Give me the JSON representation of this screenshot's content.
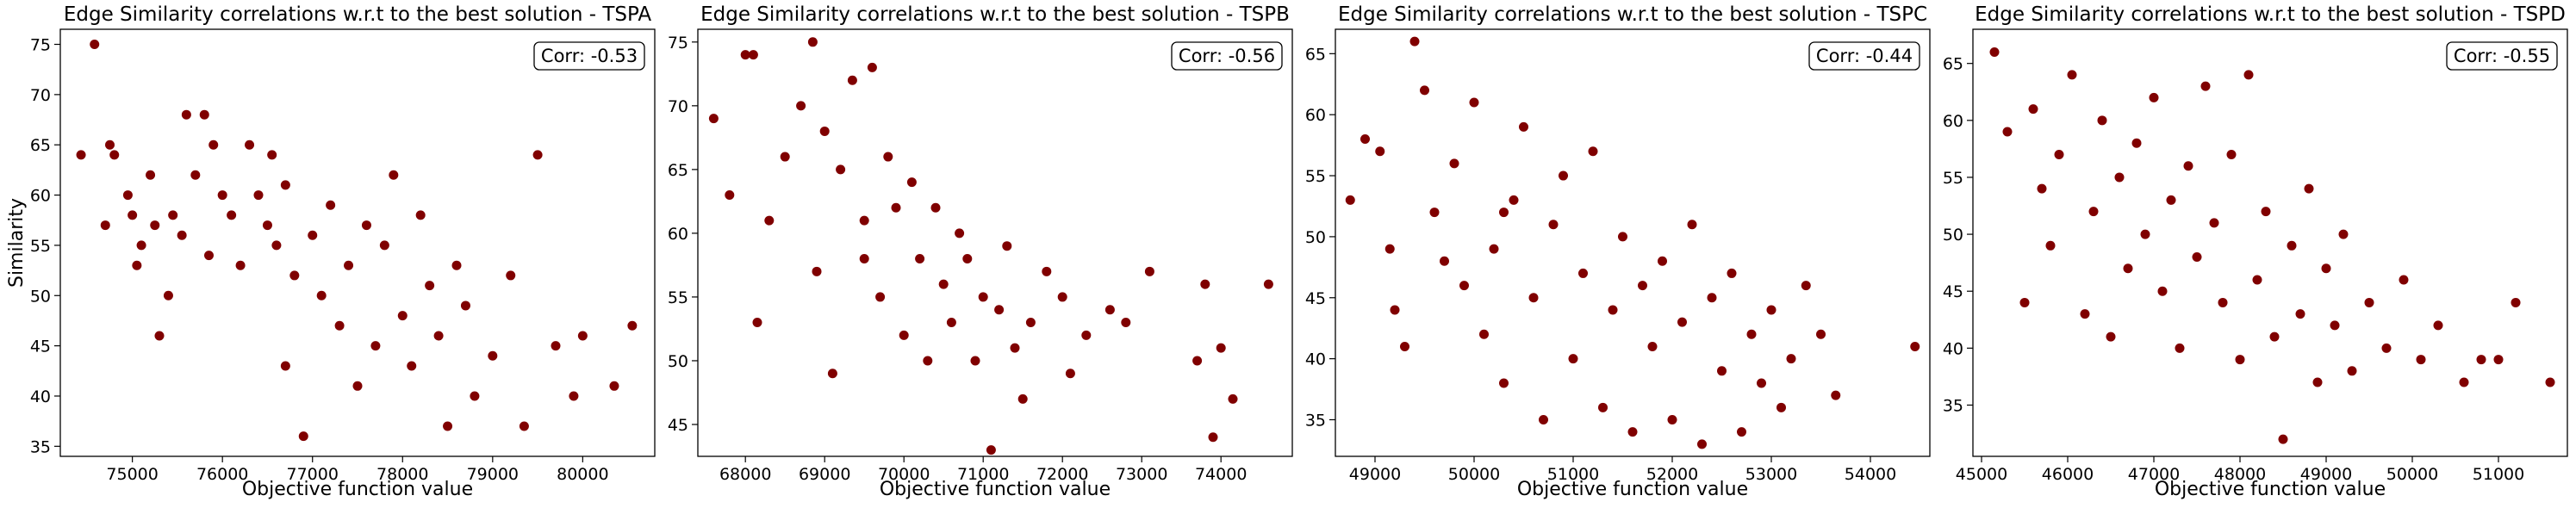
{
  "figure": {
    "marker_color": "#800000"
  },
  "chart_data": [
    {
      "type": "scatter",
      "title": "Edge Similarity correlations w.r.t to the best solution - TSPA",
      "xlabel": "Objective function value",
      "ylabel": "Similarity",
      "corr_label": "Corr: -0.53",
      "xlim": [
        74200,
        80800
      ],
      "ylim": [
        34,
        76.5
      ],
      "xticks": [
        75000,
        76000,
        77000,
        78000,
        79000,
        80000
      ],
      "yticks": [
        35,
        40,
        45,
        50,
        55,
        60,
        65,
        70,
        75
      ],
      "points": [
        [
          74430,
          64
        ],
        [
          74580,
          75
        ],
        [
          74700,
          57
        ],
        [
          74750,
          65
        ],
        [
          74800,
          64
        ],
        [
          74950,
          60
        ],
        [
          75000,
          58
        ],
        [
          75050,
          53
        ],
        [
          75100,
          55
        ],
        [
          75250,
          57
        ],
        [
          75300,
          46
        ],
        [
          75400,
          50
        ],
        [
          75450,
          58
        ],
        [
          75550,
          56
        ],
        [
          75600,
          68
        ],
        [
          75700,
          62
        ],
        [
          75800,
          68
        ],
        [
          75850,
          54
        ],
        [
          75900,
          65
        ],
        [
          76000,
          60
        ],
        [
          76100,
          58
        ],
        [
          76200,
          53
        ],
        [
          76300,
          65
        ],
        [
          76400,
          60
        ],
        [
          76500,
          57
        ],
        [
          76550,
          64
        ],
        [
          76600,
          55
        ],
        [
          76700,
          61
        ],
        [
          76800,
          52
        ],
        [
          76900,
          36
        ],
        [
          77000,
          56
        ],
        [
          77100,
          50
        ],
        [
          77200,
          59
        ],
        [
          77300,
          47
        ],
        [
          77400,
          53
        ],
        [
          77500,
          41
        ],
        [
          77600,
          57
        ],
        [
          77700,
          45
        ],
        [
          77800,
          55
        ],
        [
          77900,
          62
        ],
        [
          78000,
          48
        ],
        [
          78100,
          43
        ],
        [
          78200,
          58
        ],
        [
          78300,
          51
        ],
        [
          78400,
          46
        ],
        [
          78500,
          37
        ],
        [
          78600,
          53
        ],
        [
          78800,
          40
        ],
        [
          79000,
          44
        ],
        [
          79200,
          52
        ],
        [
          79350,
          37
        ],
        [
          79500,
          64
        ],
        [
          79700,
          45
        ],
        [
          79900,
          40
        ],
        [
          80000,
          46
        ],
        [
          80350,
          41
        ],
        [
          80550,
          47
        ],
        [
          75200,
          62
        ],
        [
          76700,
          43
        ],
        [
          78700,
          49
        ]
      ]
    },
    {
      "type": "scatter",
      "title": "Edge Similarity correlations w.r.t to the best solution - TSPB",
      "xlabel": "Objective function value",
      "ylabel": "",
      "corr_label": "Corr: -0.56",
      "xlim": [
        67400,
        74900
      ],
      "ylim": [
        42.5,
        76
      ],
      "xticks": [
        68000,
        69000,
        70000,
        71000,
        72000,
        73000,
        74000
      ],
      "yticks": [
        45,
        50,
        55,
        60,
        65,
        70,
        75
      ],
      "points": [
        [
          67600,
          69
        ],
        [
          67800,
          63
        ],
        [
          68000,
          74
        ],
        [
          68100,
          74
        ],
        [
          68150,
          53
        ],
        [
          68300,
          61
        ],
        [
          68500,
          66
        ],
        [
          68700,
          70
        ],
        [
          68850,
          75
        ],
        [
          68900,
          57
        ],
        [
          69000,
          68
        ],
        [
          69100,
          49
        ],
        [
          69200,
          65
        ],
        [
          69350,
          72
        ],
        [
          69500,
          61
        ],
        [
          69600,
          73
        ],
        [
          69700,
          55
        ],
        [
          69800,
          66
        ],
        [
          69900,
          62
        ],
        [
          70000,
          52
        ],
        [
          70100,
          64
        ],
        [
          70200,
          58
        ],
        [
          70300,
          50
        ],
        [
          70400,
          62
        ],
        [
          70500,
          56
        ],
        [
          70600,
          53
        ],
        [
          70700,
          60
        ],
        [
          70800,
          58
        ],
        [
          70900,
          50
        ],
        [
          71000,
          55
        ],
        [
          71100,
          43
        ],
        [
          71200,
          54
        ],
        [
          71300,
          59
        ],
        [
          71400,
          51
        ],
        [
          71500,
          47
        ],
        [
          71600,
          53
        ],
        [
          71800,
          57
        ],
        [
          72000,
          55
        ],
        [
          72100,
          49
        ],
        [
          72300,
          52
        ],
        [
          72600,
          54
        ],
        [
          72800,
          53
        ],
        [
          73100,
          57
        ],
        [
          73700,
          50
        ],
        [
          73800,
          56
        ],
        [
          73900,
          44
        ],
        [
          74000,
          51
        ],
        [
          74150,
          47
        ],
        [
          74600,
          56
        ],
        [
          69500,
          58
        ]
      ]
    },
    {
      "type": "scatter",
      "title": "Edge Similarity correlations w.r.t to the best solution - TSPC",
      "xlabel": "Objective function value",
      "ylabel": "",
      "corr_label": "Corr: -0.44",
      "xlim": [
        48600,
        54600
      ],
      "ylim": [
        32,
        67
      ],
      "xticks": [
        49000,
        50000,
        51000,
        52000,
        53000,
        54000
      ],
      "yticks": [
        35,
        40,
        45,
        50,
        55,
        60,
        65
      ],
      "points": [
        [
          48750,
          53
        ],
        [
          48900,
          58
        ],
        [
          49050,
          57
        ],
        [
          49150,
          49
        ],
        [
          49200,
          44
        ],
        [
          49300,
          41
        ],
        [
          49400,
          66
        ],
        [
          49500,
          62
        ],
        [
          49600,
          52
        ],
        [
          49700,
          48
        ],
        [
          49800,
          56
        ],
        [
          49900,
          46
        ],
        [
          50000,
          61
        ],
        [
          50100,
          42
        ],
        [
          50200,
          49
        ],
        [
          50300,
          38
        ],
        [
          50400,
          53
        ],
        [
          50500,
          59
        ],
        [
          50600,
          45
        ],
        [
          50700,
          35
        ],
        [
          50800,
          51
        ],
        [
          50900,
          55
        ],
        [
          51000,
          40
        ],
        [
          51100,
          47
        ],
        [
          51200,
          57
        ],
        [
          51300,
          36
        ],
        [
          51400,
          44
        ],
        [
          51500,
          50
        ],
        [
          51600,
          34
        ],
        [
          51700,
          46
        ],
        [
          51800,
          41
        ],
        [
          51900,
          48
        ],
        [
          52000,
          35
        ],
        [
          52100,
          43
        ],
        [
          52200,
          51
        ],
        [
          52300,
          33
        ],
        [
          52400,
          45
        ],
        [
          52500,
          39
        ],
        [
          52600,
          47
        ],
        [
          52700,
          34
        ],
        [
          52800,
          42
        ],
        [
          52900,
          38
        ],
        [
          53000,
          44
        ],
        [
          53100,
          36
        ],
        [
          53200,
          40
        ],
        [
          53350,
          46
        ],
        [
          53500,
          42
        ],
        [
          53650,
          37
        ],
        [
          54450,
          41
        ],
        [
          50300,
          52
        ]
      ]
    },
    {
      "type": "scatter",
      "title": "Edge Similarity correlations w.r.t to the best solution - TSPD",
      "xlabel": "Objective function value",
      "ylabel": "",
      "corr_label": "Corr: -0.55",
      "xlim": [
        44900,
        51800
      ],
      "ylim": [
        30.5,
        68
      ],
      "xticks": [
        45000,
        46000,
        47000,
        48000,
        49000,
        50000,
        51000
      ],
      "yticks": [
        35,
        40,
        45,
        50,
        55,
        60,
        65
      ],
      "points": [
        [
          45150,
          66
        ],
        [
          45300,
          59
        ],
        [
          45500,
          44
        ],
        [
          45600,
          61
        ],
        [
          45700,
          54
        ],
        [
          45800,
          49
        ],
        [
          45900,
          57
        ],
        [
          46050,
          64
        ],
        [
          46200,
          43
        ],
        [
          46300,
          52
        ],
        [
          46400,
          60
        ],
        [
          46500,
          41
        ],
        [
          46600,
          55
        ],
        [
          46700,
          47
        ],
        [
          46800,
          58
        ],
        [
          46900,
          50
        ],
        [
          47000,
          62
        ],
        [
          47100,
          45
        ],
        [
          47200,
          53
        ],
        [
          47300,
          40
        ],
        [
          47400,
          56
        ],
        [
          47500,
          48
        ],
        [
          47600,
          63
        ],
        [
          47700,
          51
        ],
        [
          47800,
          44
        ],
        [
          47900,
          57
        ],
        [
          48000,
          39
        ],
        [
          48100,
          64
        ],
        [
          48200,
          46
        ],
        [
          48300,
          52
        ],
        [
          48400,
          41
        ],
        [
          48500,
          32
        ],
        [
          48600,
          49
        ],
        [
          48700,
          43
        ],
        [
          48800,
          54
        ],
        [
          48900,
          37
        ],
        [
          49000,
          47
        ],
        [
          49100,
          42
        ],
        [
          49200,
          50
        ],
        [
          49300,
          38
        ],
        [
          49500,
          44
        ],
        [
          49700,
          40
        ],
        [
          49900,
          46
        ],
        [
          50100,
          39
        ],
        [
          50300,
          42
        ],
        [
          50600,
          37
        ],
        [
          50800,
          39
        ],
        [
          51000,
          39
        ],
        [
          51200,
          44
        ],
        [
          51600,
          37
        ]
      ]
    }
  ]
}
